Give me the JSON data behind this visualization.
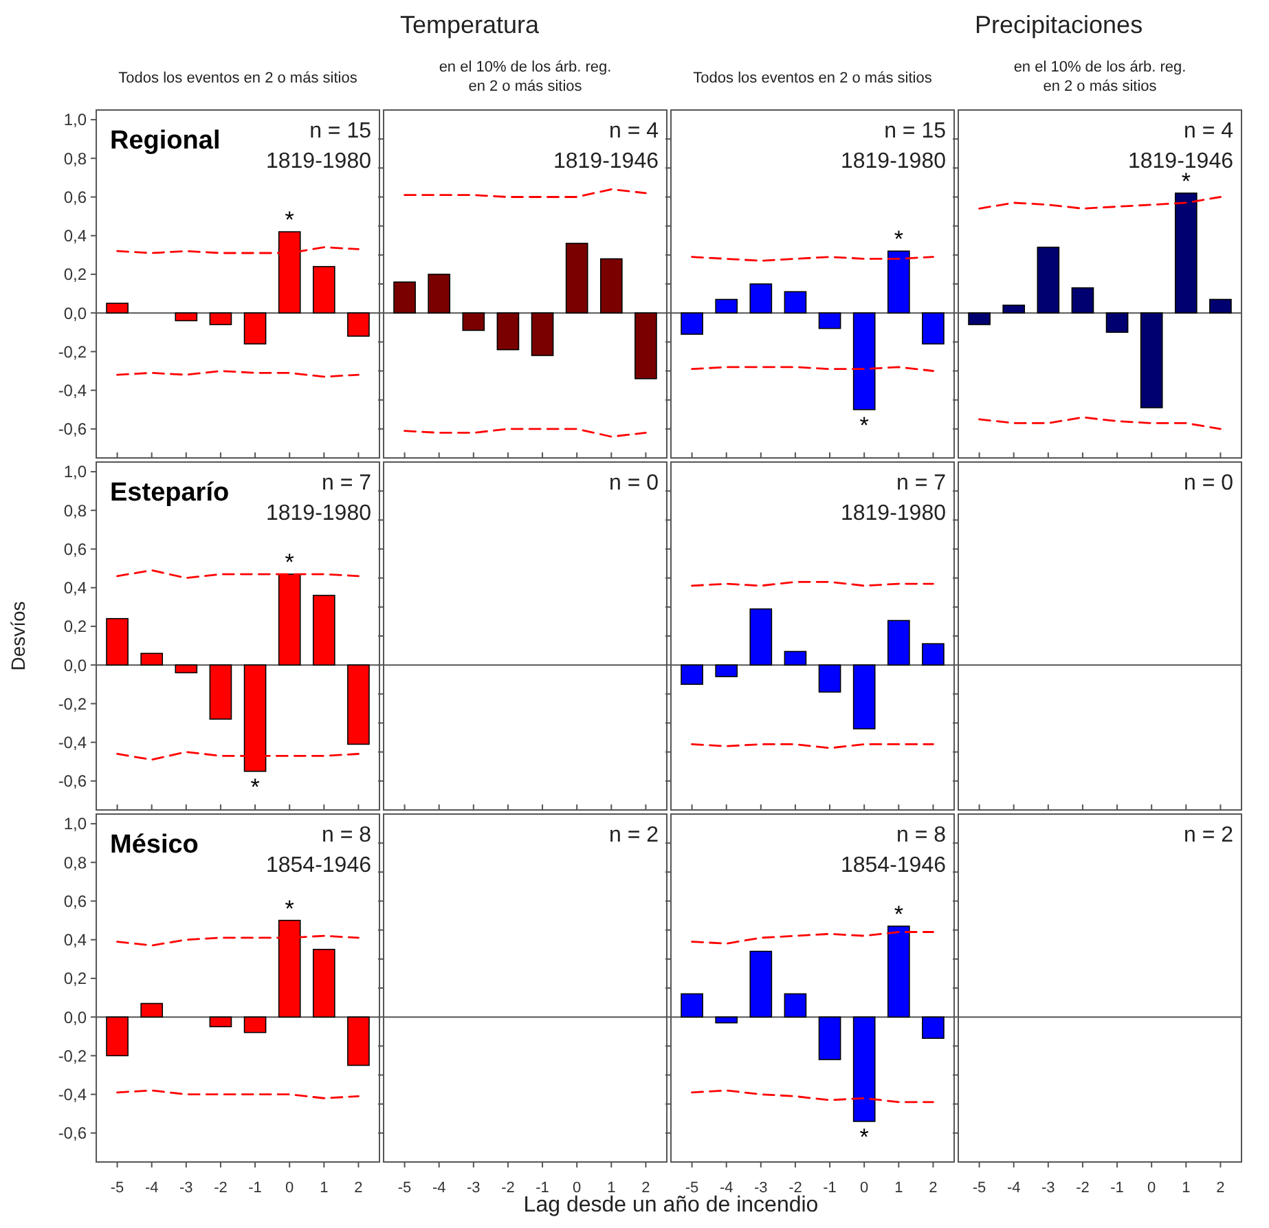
{
  "chart_data": [
    {
      "type": "bar",
      "subtitle": "Todos los eventos en 2 o más sitios",
      "title": "Regional",
      "categories": [
        "-5",
        "-4",
        "-3",
        "-2",
        "-1",
        "0",
        "1",
        "2"
      ],
      "ylim": [
        -0.75,
        1.05
      ],
      "yticks": [
        {
          "value": -0.6,
          "label": "-0,6"
        },
        {
          "value": -0.4,
          "label": "-0,4"
        },
        {
          "value": -0.2,
          "label": "-0,2"
        },
        {
          "value": 0,
          "label": "0,0"
        },
        {
          "value": 0.2,
          "label": "0,2"
        },
        {
          "value": 0.4,
          "label": "0,4"
        },
        {
          "value": 0.6,
          "label": "0,6"
        },
        {
          "value": 0.8,
          "label": "0,8"
        },
        {
          "value": 1,
          "label": "1,0"
        }
      ],
      "tick_labels": "y",
      "series": [
        {
          "type": "bar",
          "color": "#ff0000",
          "values": [
            0.05,
            0.0,
            -0.04,
            -0.06,
            -0.16,
            0.42,
            0.24,
            -0.12
          ]
        },
        {
          "type": "line",
          "color": "#ff0000",
          "line_style": "dashed",
          "values": [
            0.32,
            0.31,
            0.32,
            0.31,
            0.31,
            0.31,
            0.34,
            0.33
          ]
        },
        {
          "type": "line",
          "color": "#ff0000",
          "line_style": "dashed",
          "values": [
            -0.32,
            -0.31,
            -0.32,
            -0.3,
            -0.31,
            -0.31,
            -0.33,
            -0.32
          ]
        }
      ],
      "annotations": [
        "n = 15",
        "1819-1980",
        {
          "text": "*",
          "x": "0",
          "y": 0.42
        }
      ]
    },
    {
      "type": "bar",
      "title": "Temperatura",
      "subtitle": "en el 10% de los árb. reg. en 2 o más sitios",
      "categories": [
        "-5",
        "-4",
        "-3",
        "-2",
        "-1",
        "0",
        "1",
        "2"
      ],
      "ylim": [
        -0.75,
        1.05
      ],
      "yticks": [
        {
          "value": -0.6,
          "label": null
        },
        {
          "value": -0.45,
          "label": null
        },
        {
          "value": -0.3,
          "label": null
        },
        {
          "value": -0.15,
          "label": null
        },
        {
          "value": 0,
          "label": null
        },
        {
          "value": 0.15,
          "label": null
        },
        {
          "value": 0.3,
          "label": null
        },
        {
          "value": 0.45,
          "label": null
        },
        {
          "value": 0.6,
          "label": null
        },
        {
          "value": 0.75,
          "label": null
        },
        {
          "value": 0.9,
          "label": null
        }
      ],
      "tick_labels": false,
      "series": [
        {
          "type": "bar",
          "color": "#7a0000",
          "values": [
            0.16,
            0.2,
            -0.09,
            -0.19,
            -0.22,
            0.36,
            0.28,
            -0.34
          ]
        },
        {
          "type": "line",
          "color": "#ff0000",
          "line_style": "dashed",
          "values": [
            0.61,
            0.61,
            0.61,
            0.6,
            0.6,
            0.6,
            0.64,
            0.62
          ]
        },
        {
          "type": "line",
          "color": "#ff0000",
          "line_style": "dashed",
          "values": [
            -0.61,
            -0.62,
            -0.62,
            -0.6,
            -0.6,
            -0.6,
            -0.64,
            -0.62
          ]
        }
      ],
      "annotations": [
        "n = 4",
        "1819-1946"
      ]
    },
    {
      "type": "bar",
      "subtitle": "Todos los eventos en 2 o más sitios",
      "categories": [
        "-5",
        "-4",
        "-3",
        "-2",
        "-1",
        "0",
        "1",
        "2"
      ],
      "ylim": [
        -0.75,
        1.05
      ],
      "yticks": [
        {
          "value": -0.6,
          "label": null
        },
        {
          "value": -0.45,
          "label": null
        },
        {
          "value": -0.3,
          "label": null
        },
        {
          "value": -0.15,
          "label": null
        },
        {
          "value": 0,
          "label": null
        },
        {
          "value": 0.15,
          "label": null
        },
        {
          "value": 0.3,
          "label": null
        },
        {
          "value": 0.45,
          "label": null
        },
        {
          "value": 0.6,
          "label": null
        },
        {
          "value": 0.75,
          "label": null
        },
        {
          "value": 0.9,
          "label": null
        }
      ],
      "tick_labels": false,
      "series": [
        {
          "type": "bar",
          "color": "#0000ff",
          "values": [
            -0.11,
            0.07,
            0.15,
            0.11,
            -0.08,
            -0.5,
            0.32,
            -0.16
          ]
        },
        {
          "type": "line",
          "color": "#ff0000",
          "line_style": "dashed",
          "values": [
            0.29,
            0.28,
            0.27,
            0.28,
            0.29,
            0.28,
            0.28,
            0.29
          ]
        },
        {
          "type": "line",
          "color": "#ff0000",
          "line_style": "dashed",
          "values": [
            -0.29,
            -0.28,
            -0.28,
            -0.28,
            -0.29,
            -0.29,
            -0.28,
            -0.3
          ]
        }
      ],
      "annotations": [
        "n = 15",
        "1819-1980",
        {
          "text": "*",
          "x": "1",
          "y": 0.32
        },
        {
          "text": "*",
          "x": "0",
          "y": -0.5
        }
      ]
    },
    {
      "type": "bar",
      "title": "Precipitaciones",
      "subtitle": "en el 10% de los árb. reg. en 2 o más sitios",
      "categories": [
        "-5",
        "-4",
        "-3",
        "-2",
        "-1",
        "0",
        "1",
        "2"
      ],
      "ylim": [
        -0.75,
        1.05
      ],
      "yticks": [
        {
          "value": -0.6,
          "label": null
        },
        {
          "value": -0.45,
          "label": null
        },
        {
          "value": -0.3,
          "label": null
        },
        {
          "value": -0.15,
          "label": null
        },
        {
          "value": 0,
          "label": null
        },
        {
          "value": 0.15,
          "label": null
        },
        {
          "value": 0.3,
          "label": null
        },
        {
          "value": 0.45,
          "label": null
        },
        {
          "value": 0.6,
          "label": null
        },
        {
          "value": 0.75,
          "label": null
        },
        {
          "value": 0.9,
          "label": null
        }
      ],
      "tick_labels": false,
      "series": [
        {
          "type": "bar",
          "color": "#000070",
          "values": [
            -0.06,
            0.04,
            0.34,
            0.13,
            -0.1,
            -0.49,
            0.62,
            0.07
          ]
        },
        {
          "type": "line",
          "color": "#ff0000",
          "line_style": "dashed",
          "values": [
            0.54,
            0.57,
            0.56,
            0.54,
            0.55,
            0.56,
            0.57,
            0.6
          ]
        },
        {
          "type": "line",
          "color": "#ff0000",
          "line_style": "dashed",
          "values": [
            -0.55,
            -0.57,
            -0.57,
            -0.54,
            -0.56,
            -0.57,
            -0.57,
            -0.6
          ]
        }
      ],
      "annotations": [
        "n = 4",
        "1819-1946",
        {
          "text": "*",
          "x": "1",
          "y": 0.62
        }
      ]
    },
    {
      "type": "bar",
      "title": "Esteparío",
      "ylabel": "Desvíos",
      "categories": [
        "-5",
        "-4",
        "-3",
        "-2",
        "-1",
        "0",
        "1",
        "2"
      ],
      "ylim": [
        -0.75,
        1.05
      ],
      "yticks": [
        {
          "value": -0.6,
          "label": "-0,6"
        },
        {
          "value": -0.4,
          "label": "-0,4"
        },
        {
          "value": -0.2,
          "label": "-0,2"
        },
        {
          "value": 0,
          "label": "0,0"
        },
        {
          "value": 0.2,
          "label": "0,2"
        },
        {
          "value": 0.4,
          "label": "0,4"
        },
        {
          "value": 0.6,
          "label": "0,6"
        },
        {
          "value": 0.8,
          "label": "0,8"
        },
        {
          "value": 1,
          "label": "1,0"
        }
      ],
      "tick_labels": "y",
      "series": [
        {
          "type": "bar",
          "color": "#ff0000",
          "values": [
            0.24,
            0.06,
            -0.04,
            -0.28,
            -0.55,
            0.47,
            0.36,
            -0.41
          ]
        },
        {
          "type": "line",
          "color": "#ff0000",
          "line_style": "dashed",
          "values": [
            0.46,
            0.49,
            0.45,
            0.47,
            0.47,
            0.47,
            0.47,
            0.46
          ]
        },
        {
          "type": "line",
          "color": "#ff0000",
          "line_style": "dashed",
          "values": [
            -0.46,
            -0.49,
            -0.45,
            -0.47,
            -0.47,
            -0.47,
            -0.47,
            -0.46
          ]
        }
      ],
      "annotations": [
        "n = 7",
        "1819-1980",
        {
          "text": "*",
          "x": "0",
          "y": 0.47
        },
        {
          "text": "*",
          "x": "-1",
          "y": -0.55
        }
      ]
    },
    {
      "type": "bar",
      "categories": [
        "-5",
        "-4",
        "-3",
        "-2",
        "-1",
        "0",
        "1",
        "2"
      ],
      "ylim": [
        -0.75,
        1.05
      ],
      "yticks": [
        {
          "value": -0.6,
          "label": null
        },
        {
          "value": -0.45,
          "label": null
        },
        {
          "value": -0.3,
          "label": null
        },
        {
          "value": -0.15,
          "label": null
        },
        {
          "value": 0,
          "label": null
        },
        {
          "value": 0.15,
          "label": null
        },
        {
          "value": 0.3,
          "label": null
        },
        {
          "value": 0.45,
          "label": null
        },
        {
          "value": 0.6,
          "label": null
        },
        {
          "value": 0.75,
          "label": null
        },
        {
          "value": 0.9,
          "label": null
        }
      ],
      "tick_labels": false,
      "annotations": [
        "n = 0"
      ]
    },
    {
      "type": "bar",
      "categories": [
        "-5",
        "-4",
        "-3",
        "-2",
        "-1",
        "0",
        "1",
        "2"
      ],
      "ylim": [
        -0.75,
        1.05
      ],
      "yticks": [
        {
          "value": -0.6,
          "label": null
        },
        {
          "value": -0.45,
          "label": null
        },
        {
          "value": -0.3,
          "label": null
        },
        {
          "value": -0.15,
          "label": null
        },
        {
          "value": 0,
          "label": null
        },
        {
          "value": 0.15,
          "label": null
        },
        {
          "value": 0.3,
          "label": null
        },
        {
          "value": 0.45,
          "label": null
        },
        {
          "value": 0.6,
          "label": null
        },
        {
          "value": 0.75,
          "label": null
        },
        {
          "value": 0.9,
          "label": null
        }
      ],
      "tick_labels": false,
      "series": [
        {
          "type": "bar",
          "color": "#0000ff",
          "values": [
            -0.1,
            -0.06,
            0.29,
            0.07,
            -0.14,
            -0.33,
            0.23,
            0.11
          ]
        },
        {
          "type": "line",
          "color": "#ff0000",
          "line_style": "dashed",
          "values": [
            0.41,
            0.42,
            0.41,
            0.43,
            0.43,
            0.41,
            0.42,
            0.42
          ]
        },
        {
          "type": "line",
          "color": "#ff0000",
          "line_style": "dashed",
          "values": [
            -0.41,
            -0.42,
            -0.41,
            -0.41,
            -0.43,
            -0.41,
            -0.41,
            -0.41
          ]
        }
      ],
      "annotations": [
        "n = 7",
        "1819-1980"
      ]
    },
    {
      "type": "bar",
      "categories": [
        "-5",
        "-4",
        "-3",
        "-2",
        "-1",
        "0",
        "1",
        "2"
      ],
      "ylim": [
        -0.75,
        1.05
      ],
      "yticks": [
        {
          "value": -0.6,
          "label": null
        },
        {
          "value": -0.45,
          "label": null
        },
        {
          "value": -0.3,
          "label": null
        },
        {
          "value": -0.15,
          "label": null
        },
        {
          "value": 0,
          "label": null
        },
        {
          "value": 0.15,
          "label": null
        },
        {
          "value": 0.3,
          "label": null
        },
        {
          "value": 0.45,
          "label": null
        },
        {
          "value": 0.6,
          "label": null
        },
        {
          "value": 0.75,
          "label": null
        },
        {
          "value": 0.9,
          "label": null
        }
      ],
      "tick_labels": false,
      "annotations": [
        "n = 0"
      ]
    },
    {
      "type": "bar",
      "title": "Mésico",
      "categories": [
        "-5",
        "-4",
        "-3",
        "-2",
        "-1",
        "0",
        "1",
        "2"
      ],
      "ylim": [
        -0.75,
        1.05
      ],
      "yticks": [
        {
          "value": -0.6,
          "label": "-0,6"
        },
        {
          "value": -0.4,
          "label": "-0,4"
        },
        {
          "value": -0.2,
          "label": "-0,2"
        },
        {
          "value": 0,
          "label": "0,0"
        },
        {
          "value": 0.2,
          "label": "0,2"
        },
        {
          "value": 0.4,
          "label": "0,4"
        },
        {
          "value": 0.6,
          "label": "0,6"
        },
        {
          "value": 0.8,
          "label": "0,8"
        },
        {
          "value": 1,
          "label": "1,0"
        }
      ],
      "series": [
        {
          "type": "bar",
          "color": "#ff0000",
          "values": [
            -0.2,
            0.07,
            0.0,
            -0.05,
            -0.08,
            0.5,
            0.35,
            -0.25
          ]
        },
        {
          "type": "line",
          "color": "#ff0000",
          "line_style": "dashed",
          "values": [
            0.39,
            0.37,
            0.4,
            0.41,
            0.41,
            0.41,
            0.42,
            0.41
          ]
        },
        {
          "type": "line",
          "color": "#ff0000",
          "line_style": "dashed",
          "values": [
            -0.39,
            -0.38,
            -0.4,
            -0.4,
            -0.4,
            -0.4,
            -0.42,
            -0.41
          ]
        }
      ],
      "annotations": [
        "n = 8",
        "1854-1946",
        {
          "text": "*",
          "x": "0",
          "y": 0.5
        }
      ]
    },
    {
      "type": "bar",
      "categories": [
        "-5",
        "-4",
        "-3",
        "-2",
        "-1",
        "0",
        "1",
        "2"
      ],
      "ylim": [
        -0.75,
        1.05
      ],
      "yticks": [
        {
          "value": -0.6,
          "label": null
        },
        {
          "value": -0.45,
          "label": null
        },
        {
          "value": -0.3,
          "label": null
        },
        {
          "value": -0.15,
          "label": null
        },
        {
          "value": 0,
          "label": null
        },
        {
          "value": 0.15,
          "label": null
        },
        {
          "value": 0.3,
          "label": null
        },
        {
          "value": 0.45,
          "label": null
        },
        {
          "value": 0.6,
          "label": null
        },
        {
          "value": 0.75,
          "label": null
        },
        {
          "value": 0.9,
          "label": null
        }
      ],
      "tick_labels": "x",
      "annotations": [
        "n = 2"
      ]
    },
    {
      "type": "bar",
      "xlabel": "Lag desde un año de incendio",
      "categories": [
        "-5",
        "-4",
        "-3",
        "-2",
        "-1",
        "0",
        "1",
        "2"
      ],
      "ylim": [
        -0.75,
        1.05
      ],
      "yticks": [
        {
          "value": -0.6,
          "label": null
        },
        {
          "value": -0.45,
          "label": null
        },
        {
          "value": -0.3,
          "label": null
        },
        {
          "value": -0.15,
          "label": null
        },
        {
          "value": 0,
          "label": null
        },
        {
          "value": 0.15,
          "label": null
        },
        {
          "value": 0.3,
          "label": null
        },
        {
          "value": 0.45,
          "label": null
        },
        {
          "value": 0.6,
          "label": null
        },
        {
          "value": 0.75,
          "label": null
        },
        {
          "value": 0.9,
          "label": null
        }
      ],
      "tick_labels": "x",
      "series": [
        {
          "type": "bar",
          "color": "#0000ff",
          "values": [
            0.12,
            -0.03,
            0.34,
            0.12,
            -0.22,
            -0.54,
            0.47,
            -0.11
          ]
        },
        {
          "type": "line",
          "color": "#ff0000",
          "line_style": "dashed",
          "values": [
            0.39,
            0.38,
            0.41,
            0.42,
            0.43,
            0.42,
            0.44,
            0.44
          ]
        },
        {
          "type": "line",
          "color": "#ff0000",
          "line_style": "dashed",
          "values": [
            -0.39,
            -0.38,
            -0.4,
            -0.41,
            -0.43,
            -0.42,
            -0.44,
            -0.44
          ]
        }
      ],
      "annotations": [
        "n = 8",
        "1854-1946",
        {
          "text": "*",
          "x": "1",
          "y": 0.47
        },
        {
          "text": "*",
          "x": "0",
          "y": -0.54
        }
      ]
    },
    {
      "type": "bar",
      "categories": [
        "-5",
        "-4",
        "-3",
        "-2",
        "-1",
        "0",
        "1",
        "2"
      ],
      "ylim": [
        -0.75,
        1.05
      ],
      "yticks": [
        {
          "value": -0.6,
          "label": null
        },
        {
          "value": -0.45,
          "label": null
        },
        {
          "value": -0.3,
          "label": null
        },
        {
          "value": -0.15,
          "label": null
        },
        {
          "value": 0,
          "label": null
        },
        {
          "value": 0.15,
          "label": null
        },
        {
          "value": 0.3,
          "label": null
        },
        {
          "value": 0.45,
          "label": null
        },
        {
          "value": 0.6,
          "label": null
        },
        {
          "value": 0.75,
          "label": null
        },
        {
          "value": 0.9,
          "label": null
        }
      ],
      "tick_labels": "x",
      "annotations": [
        "n = 2"
      ]
    }
  ]
}
